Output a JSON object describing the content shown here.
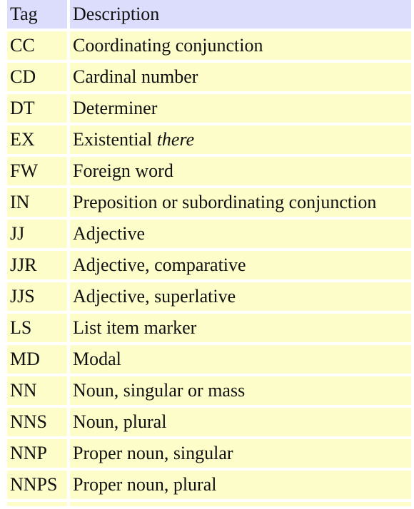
{
  "table": {
    "headers": {
      "tag": "Tag",
      "description": "Description"
    },
    "rows": [
      {
        "tag": "CC",
        "description": "Coordinating conjunction"
      },
      {
        "tag": "CD",
        "description": "Cardinal number"
      },
      {
        "tag": "DT",
        "description": "Determiner"
      },
      {
        "tag": "EX",
        "description": "Existential ",
        "description_italic": "there"
      },
      {
        "tag": "FW",
        "description": "Foreign word"
      },
      {
        "tag": "IN",
        "description": "Preposition or subordinating conjunction"
      },
      {
        "tag": "JJ",
        "description": "Adjective"
      },
      {
        "tag": "JJR",
        "description": "Adjective, comparative"
      },
      {
        "tag": "JJS",
        "description": "Adjective, superlative"
      },
      {
        "tag": "LS",
        "description": "List item marker"
      },
      {
        "tag": "MD",
        "description": "Modal"
      },
      {
        "tag": "NN",
        "description": "Noun, singular or mass"
      },
      {
        "tag": "NNS",
        "description": "Noun, plural"
      },
      {
        "tag": "NNP",
        "description": "Proper noun, singular"
      },
      {
        "tag": "NNPS",
        "description": "Proper noun, plural"
      }
    ]
  },
  "colors": {
    "header_bg": "#dcdcfc",
    "cell_bg": "#fdfdca"
  }
}
